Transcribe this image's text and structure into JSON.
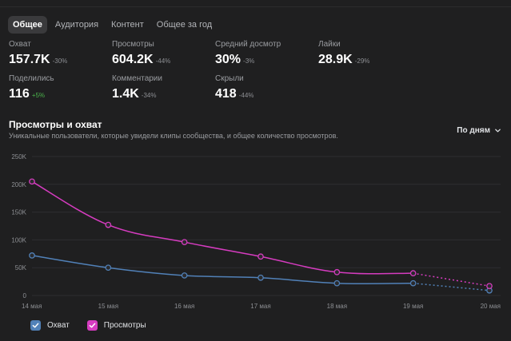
{
  "tabs": [
    {
      "label": "Общее",
      "active": true
    },
    {
      "label": "Аудитория",
      "active": false
    },
    {
      "label": "Контент",
      "active": false
    },
    {
      "label": "Общее за год",
      "active": false
    }
  ],
  "stats": [
    {
      "label": "Охват",
      "value": "157.7K",
      "delta": "-30%"
    },
    {
      "label": "Просмотры",
      "value": "604.2K",
      "delta": "-44%"
    },
    {
      "label": "Средний досмотр",
      "value": "30%",
      "delta": "-3%"
    },
    {
      "label": "Лайки",
      "value": "28.9K",
      "delta": "-29%"
    },
    {
      "label": "Поделились",
      "value": "116",
      "delta": "+5%"
    },
    {
      "label": "Комментарии",
      "value": "1.4K",
      "delta": "-34%"
    },
    {
      "label": "Скрыли",
      "value": "418",
      "delta": "-44%"
    }
  ],
  "section": {
    "title": "Просмотры и охват",
    "subtitle": "Уникальные пользователи, которые увидели клипы сообщества, и общее количество просмотров.",
    "period": "По дням"
  },
  "colors": {
    "reach": "#5181b8",
    "views": "#d63cc0",
    "background": "#1f1f20"
  },
  "chart_data": {
    "type": "line",
    "x": [
      "14 мая",
      "15 мая",
      "16 мая",
      "17 мая",
      "18 мая",
      "19 мая",
      "20 мая"
    ],
    "yticks": [
      "0",
      "50K",
      "100K",
      "150K",
      "200K",
      "250K"
    ],
    "ylim": [
      0,
      250000
    ],
    "grid": true,
    "legend_position": "bottom-left",
    "projected_from_index": 5,
    "series": [
      {
        "name": "Охват",
        "color": "#5181b8",
        "values": [
          72000,
          50000,
          36000,
          32000,
          22000,
          22000,
          9000
        ]
      },
      {
        "name": "Просмотры",
        "color": "#d63cc0",
        "values": [
          205000,
          127000,
          96000,
          70000,
          42000,
          40000,
          17000
        ]
      }
    ]
  }
}
